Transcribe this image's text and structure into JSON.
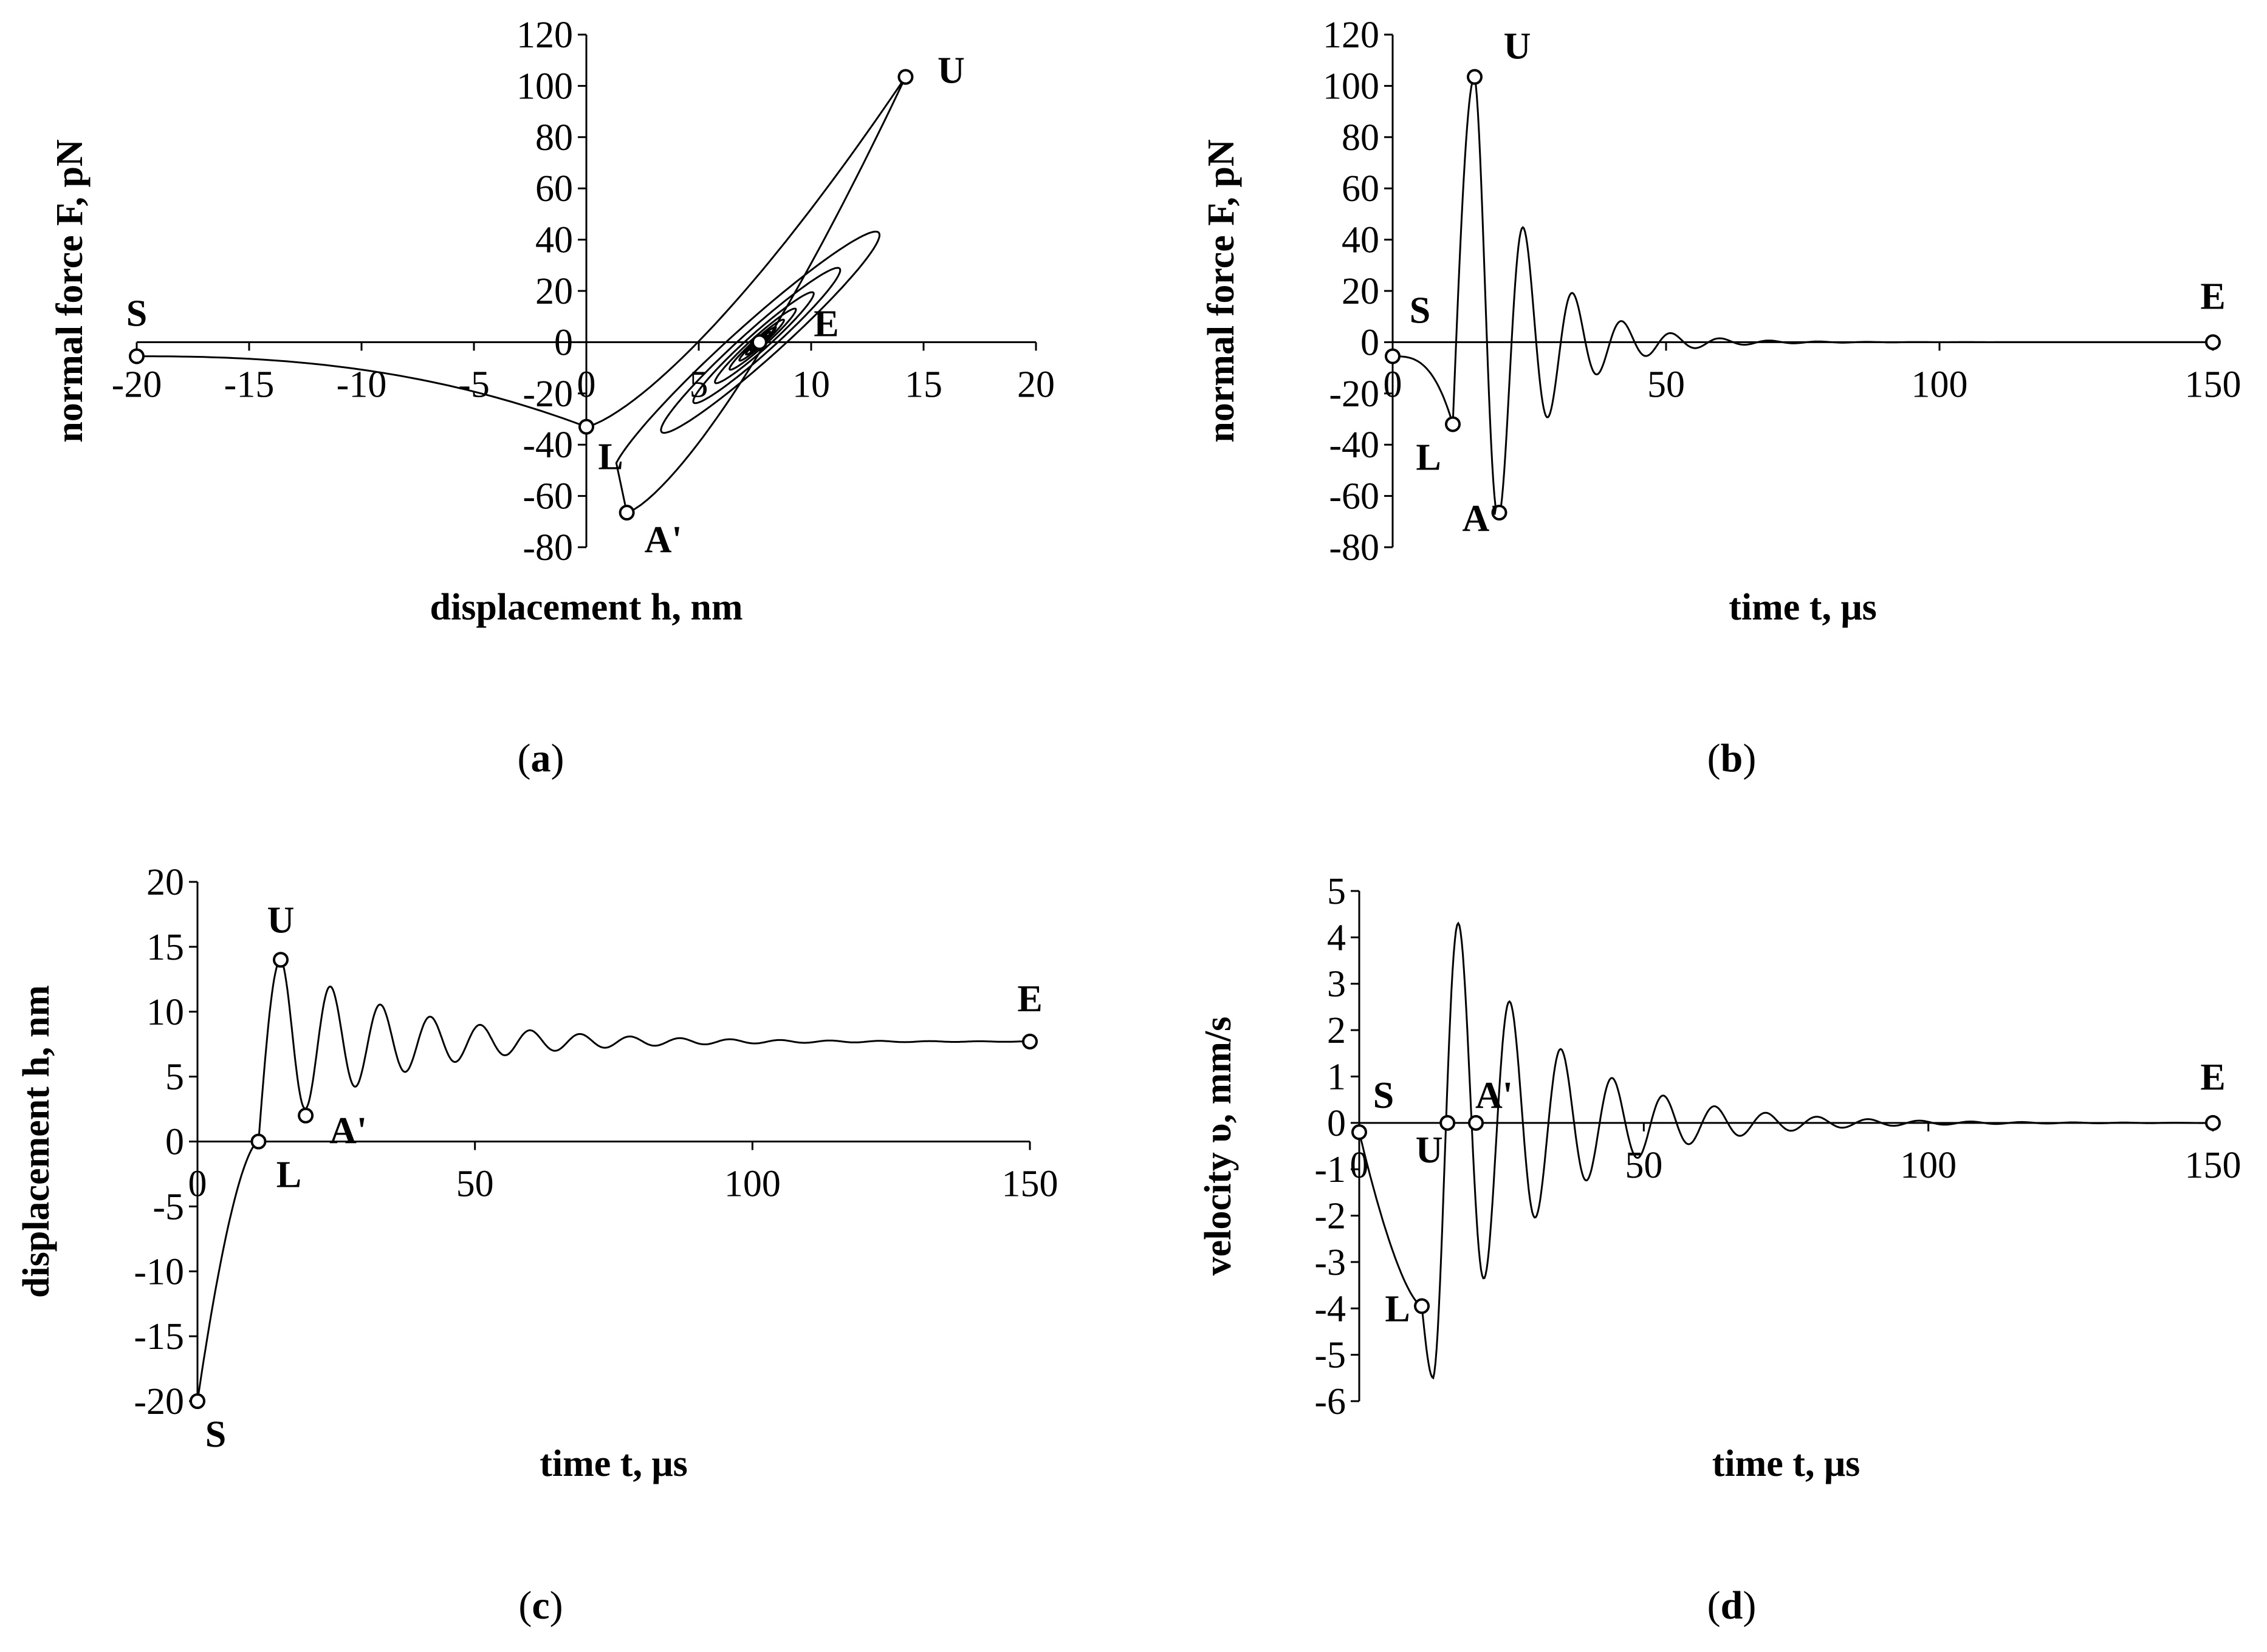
{
  "colors": {
    "line": "#000000",
    "background": "#ffffff",
    "marker_fill": "#ffffff"
  },
  "chart_data": [
    {
      "id": "a",
      "type": "line",
      "caption": "a",
      "xlabel": "displacement h, nm",
      "ylabel": "normal force F, pN",
      "xlim": [
        -20,
        20
      ],
      "ylim": [
        -80,
        120
      ],
      "xticks": [
        -20,
        -15,
        -10,
        -5,
        0,
        5,
        10,
        15,
        20
      ],
      "yticks": [
        -80,
        -60,
        -40,
        -20,
        0,
        20,
        40,
        60,
        80,
        100,
        120
      ],
      "grid": false,
      "points": [
        {
          "label": "S",
          "x": -20,
          "y": -5.5
        },
        {
          "label": "L",
          "x": 0,
          "y": -33
        },
        {
          "label": "U",
          "x": 14.2,
          "y": 103.5
        },
        {
          "label": "A'",
          "x": 1.8,
          "y": -66.5
        },
        {
          "label": "E",
          "x": 7.7,
          "y": 0
        }
      ],
      "model": {
        "h_eq": 7.7,
        "loop": true,
        "loop_start_x": 0,
        "loop_start_y": -33,
        "loop_slope_pN_per_nm": 6.0,
        "amp0_nm": 6.5,
        "decay_per_half_cycle": 0.82,
        "cycles": 9
      }
    },
    {
      "id": "b",
      "type": "line",
      "caption": "b",
      "xlabel": "time t, μs",
      "ylabel": "normal force F, pN",
      "xlim": [
        0,
        150
      ],
      "ylim": [
        -80,
        120
      ],
      "xticks": [
        0,
        50,
        100,
        150
      ],
      "yticks": [
        -80,
        -60,
        -40,
        -20,
        0,
        20,
        40,
        60,
        80,
        100,
        120
      ],
      "grid": false,
      "points": [
        {
          "label": "S",
          "x": 0,
          "y": -5.5
        },
        {
          "label": "L",
          "x": 11,
          "y": -32
        },
        {
          "label": "U",
          "x": 15,
          "y": 103.5
        },
        {
          "label": "A'",
          "x": 19.5,
          "y": -66.5
        },
        {
          "label": "E",
          "x": 150,
          "y": 0
        }
      ],
      "model": {
        "t_approach_end": 11,
        "first_peak_t": 15,
        "period": 9.0,
        "peak0": 103.5,
        "decay_per_half_cycle": 0.655,
        "offset": 0
      }
    },
    {
      "id": "c",
      "type": "line",
      "caption": "c",
      "xlabel": "time t, μs",
      "ylabel": "displacement h, nm",
      "xlim": [
        0,
        150
      ],
      "ylim": [
        -20,
        20
      ],
      "xticks": [
        0,
        50,
        100,
        150
      ],
      "yticks": [
        -20,
        -15,
        -10,
        -5,
        0,
        5,
        10,
        15,
        20
      ],
      "grid": false,
      "points": [
        {
          "label": "S",
          "x": 0,
          "y": -20
        },
        {
          "label": "L",
          "x": 11,
          "y": 0
        },
        {
          "label": "U",
          "x": 15,
          "y": 14
        },
        {
          "label": "A'",
          "x": 19.5,
          "y": 2
        },
        {
          "label": "E",
          "x": 150,
          "y": 7.7
        }
      ],
      "model": {
        "t_approach_end": 11,
        "first_peak_t": 15,
        "period": 9.0,
        "peak0": 14.0,
        "decay_per_half_cycle": 0.82,
        "offset": 7.7
      }
    },
    {
      "id": "d",
      "type": "line",
      "caption": "d",
      "xlabel": "time t, μs",
      "ylabel": "velocity υ, mm/s",
      "xlim": [
        0,
        150
      ],
      "ylim": [
        -6,
        5
      ],
      "xticks": [
        0,
        50,
        100,
        150
      ],
      "yticks": [
        -6,
        -5,
        -4,
        -3,
        -2,
        -1,
        0,
        1,
        2,
        3,
        4,
        5
      ],
      "grid": false,
      "points": [
        {
          "label": "S",
          "x": 0,
          "y": -0.2
        },
        {
          "label": "L",
          "x": 11,
          "y": -3.95
        },
        {
          "label": "U",
          "x": 15.5,
          "y": 0
        },
        {
          "label": "A'",
          "x": 20.5,
          "y": 0
        },
        {
          "label": "E",
          "x": 150,
          "y": 0
        }
      ],
      "model": {
        "t_approach_end": 11,
        "first_min_t": 13.0,
        "min0": -5.5,
        "period": 9.0,
        "decay_per_half_cycle": 0.78,
        "offset": 0
      }
    }
  ]
}
